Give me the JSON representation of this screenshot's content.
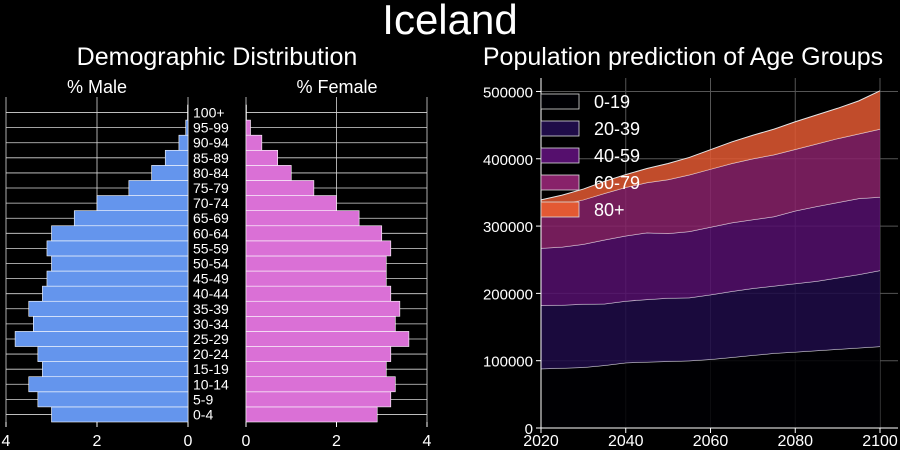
{
  "title": "Iceland",
  "colors": {
    "background": "#000000",
    "male": "#6495ED",
    "female": "#DA70D6",
    "grid": "#d8d8d8",
    "bar_edge": "#ffffff"
  },
  "chart_data": [
    {
      "type": "bar",
      "orientation": "horizontal",
      "title": "Demographic Distribution",
      "panels": [
        "% Male",
        "% Female"
      ],
      "categories": [
        "0-4",
        "5-9",
        "10-14",
        "15-19",
        "20-24",
        "25-29",
        "30-34",
        "35-39",
        "40-44",
        "45-49",
        "50-54",
        "55-59",
        "60-64",
        "65-69",
        "70-74",
        "75-79",
        "80-84",
        "85-89",
        "90-94",
        "95-99",
        "100+"
      ],
      "series": [
        {
          "name": "% Male",
          "values": [
            3.0,
            3.3,
            3.5,
            3.2,
            3.3,
            3.8,
            3.4,
            3.5,
            3.2,
            3.1,
            3.0,
            3.1,
            3.0,
            2.5,
            2.0,
            1.3,
            0.8,
            0.5,
            0.2,
            0.05,
            0.01
          ]
        },
        {
          "name": "% Female",
          "values": [
            2.9,
            3.2,
            3.3,
            3.1,
            3.2,
            3.6,
            3.3,
            3.4,
            3.2,
            3.1,
            3.1,
            3.2,
            3.0,
            2.5,
            2.0,
            1.5,
            1.0,
            0.7,
            0.35,
            0.1,
            0.01
          ]
        }
      ],
      "xlim": [
        0,
        4
      ],
      "xticks": [
        "4",
        "2",
        "0",
        "0",
        "2",
        "4"
      ],
      "grid": true
    },
    {
      "type": "area",
      "stacked": true,
      "title": "Population prediction of Age Groups",
      "x": [
        2020,
        2025,
        2030,
        2035,
        2040,
        2045,
        2050,
        2055,
        2060,
        2065,
        2070,
        2075,
        2080,
        2085,
        2090,
        2095,
        2100
      ],
      "series": [
        {
          "name": "0-19",
          "color": "#000004",
          "values": [
            88000,
            89000,
            90000,
            93000,
            97000,
            98000,
            99000,
            100000,
            102000,
            105000,
            108000,
            111000,
            113000,
            115000,
            117000,
            119000,
            121000
          ]
        },
        {
          "name": "20-39",
          "color": "#1f0c48",
          "values": [
            94000,
            93500,
            94000,
            91500,
            91500,
            93000,
            94000,
            93500,
            96000,
            98000,
            99500,
            100000,
            101500,
            103000,
            106000,
            109000,
            113000
          ]
        },
        {
          "name": "40-59",
          "color": "#550f6d",
          "values": [
            85000,
            86500,
            89000,
            95000,
            97000,
            99000,
            96000,
            98500,
            100500,
            102000,
            102000,
            103000,
            108000,
            111000,
            112000,
            113000,
            109000
          ]
        },
        {
          "name": "60-79",
          "color": "#88226a",
          "values": [
            60000,
            63000,
            66000,
            69000,
            72000,
            74500,
            80000,
            84000,
            86000,
            88000,
            90500,
            92000,
            91500,
            93000,
            95000,
            96000,
            101000
          ]
        },
        {
          "name": "80+",
          "color": "#e35933",
          "values": [
            12000,
            14000,
            16000,
            18000,
            19000,
            21000,
            24000,
            26000,
            29000,
            32000,
            35000,
            38000,
            41000,
            43000,
            45000,
            49000,
            57000
          ]
        }
      ],
      "xlim": [
        2020,
        2100
      ],
      "ylim": [
        0,
        520000
      ],
      "xticks": [
        2020,
        2040,
        2060,
        2080,
        2100
      ],
      "yticks": [
        0,
        100000,
        200000,
        300000,
        400000,
        500000
      ],
      "legend": "top-left",
      "grid": true
    }
  ]
}
